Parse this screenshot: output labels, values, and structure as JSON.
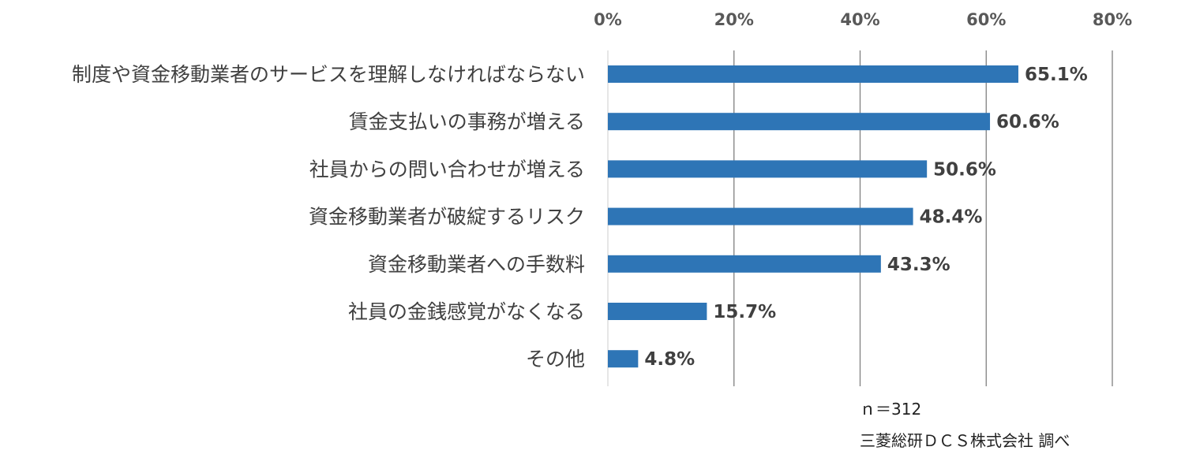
{
  "chart_data": {
    "type": "bar",
    "orientation": "horizontal",
    "categories": [
      "制度や資金移動業者のサービスを理解しなければならない",
      "賃金支払いの事務が増える",
      "社員からの問い合わせが増える",
      "資金移動業者が破綻するリスク",
      "資金移動業者への手数料",
      "社員の金銭感覚がなくなる",
      "その他"
    ],
    "values": [
      65.1,
      60.6,
      50.6,
      48.4,
      43.3,
      15.7,
      4.8
    ],
    "data_labels": [
      "65.1%",
      "60.6%",
      "50.6%",
      "48.4%",
      "43.3%",
      "15.7%",
      "4.8%"
    ],
    "xlim": [
      0,
      80
    ],
    "x_ticks": [
      0,
      20,
      40,
      60,
      80
    ],
    "x_tick_labels": [
      "0%",
      "20%",
      "40%",
      "60%",
      "80%"
    ],
    "x_axis_position": "top",
    "grid": true,
    "bar_color": "#2E75B6",
    "gridline_color": "#808080"
  },
  "notes": {
    "sample_size": "ｎ＝312",
    "source": "三菱総研ＤＣＳ株式会社 調べ"
  }
}
